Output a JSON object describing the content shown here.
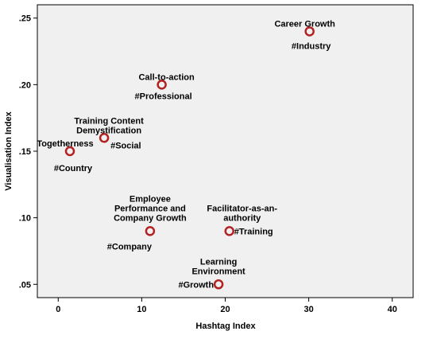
{
  "chart_data": {
    "type": "scatter",
    "xlabel": "Hashtag Index",
    "ylabel": "Visualisation Index",
    "xlim": [
      -2.5,
      42.5
    ],
    "ylim": [
      0.04,
      0.26
    ],
    "xticks": [
      "0",
      "10",
      "20",
      "30",
      "40"
    ],
    "xtick_values": [
      0,
      10,
      20,
      30,
      40
    ],
    "yticks": [
      ".05",
      ".10",
      ".15",
      ".20",
      ".25"
    ],
    "ytick_values": [
      0.05,
      0.1,
      0.15,
      0.2,
      0.25
    ],
    "grid": false,
    "marker_color": "#b22222",
    "plot_background": "#f0f0f0",
    "points": [
      {
        "x": 30.1,
        "y": 0.24,
        "label": [
          "Career Growth"
        ],
        "hashtag": "#Industry"
      },
      {
        "x": 12.4,
        "y": 0.2,
        "label": [
          "Call-to-action"
        ],
        "hashtag": "#Professional"
      },
      {
        "x": 5.5,
        "y": 0.16,
        "label": [
          "Training Content",
          "Demystification"
        ],
        "hashtag": "#Social"
      },
      {
        "x": 1.4,
        "y": 0.15,
        "label": [
          "Togetherness"
        ],
        "hashtag": "#Country"
      },
      {
        "x": 11.0,
        "y": 0.09,
        "label": [
          "Employee",
          "Performance and",
          "Company Growth"
        ],
        "hashtag": "#Company"
      },
      {
        "x": 20.5,
        "y": 0.09,
        "label": [
          "Facilitator-as-an-",
          "authority"
        ],
        "hashtag": "#Training"
      },
      {
        "x": 19.2,
        "y": 0.05,
        "label": [
          "Learning",
          "Environment"
        ],
        "hashtag": "#Growth"
      }
    ]
  }
}
